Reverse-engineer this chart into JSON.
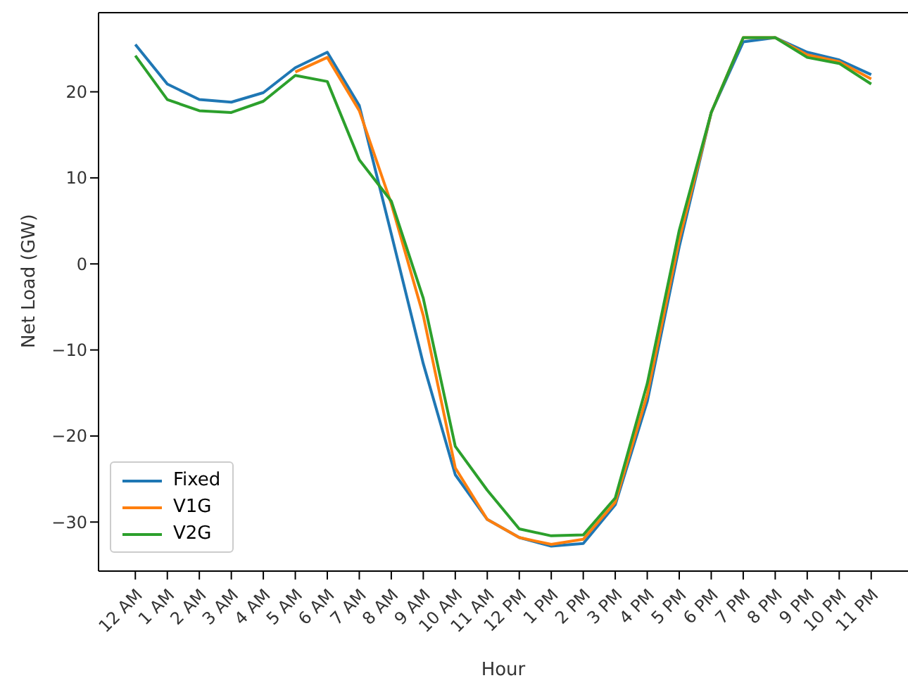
{
  "chart_data": {
    "type": "line",
    "xlabel": "Hour",
    "ylabel": "Net Load (GW)",
    "categories": [
      "12 AM",
      "1 AM",
      "2 AM",
      "3 AM",
      "4 AM",
      "5 AM",
      "6 AM",
      "7 AM",
      "8 AM",
      "9 AM",
      "10 AM",
      "11 AM",
      "12 PM",
      "1 PM",
      "2 PM",
      "3 PM",
      "4 PM",
      "5 PM",
      "6 PM",
      "7 PM",
      "8 PM",
      "9 PM",
      "10 PM",
      "11 PM"
    ],
    "series": [
      {
        "name": "Fixed",
        "color": "#1f77b4",
        "values": [
          25.5,
          20.9,
          19.1,
          18.8,
          19.9,
          22.8,
          24.6,
          18.4,
          3.5,
          -11.6,
          -24.5,
          -29.7,
          -31.8,
          -32.8,
          -32.5,
          -28,
          -16,
          2,
          17.6,
          25.8,
          26.3,
          24.6,
          23.7,
          22
        ]
      },
      {
        "name": "V1G",
        "color": "#ff7f0e",
        "values": [
          null,
          null,
          null,
          null,
          null,
          22.3,
          24,
          17.8,
          7,
          -6,
          -23.7,
          -29.7,
          -31.8,
          -32.6,
          -32,
          -27.7,
          -15.2,
          2.8,
          17.6,
          26.3,
          26.3,
          24.3,
          23.5,
          21.5
        ]
      },
      {
        "name": "V2G",
        "color": "#2ca02c",
        "values": [
          24.2,
          19.1,
          17.8,
          17.6,
          18.9,
          21.9,
          21.2,
          12.1,
          7.3,
          -4,
          -21.2,
          -26.3,
          -30.8,
          -31.6,
          -31.5,
          -27.2,
          -13.9,
          3.9,
          17.6,
          26.3,
          26.3,
          24,
          23.3,
          20.9
        ]
      }
    ],
    "ylim": [
      -35.7,
      29.2
    ],
    "yticks": [
      -30,
      -20,
      -10,
      0,
      10,
      20
    ],
    "grid": false,
    "legend": "bottom left"
  }
}
